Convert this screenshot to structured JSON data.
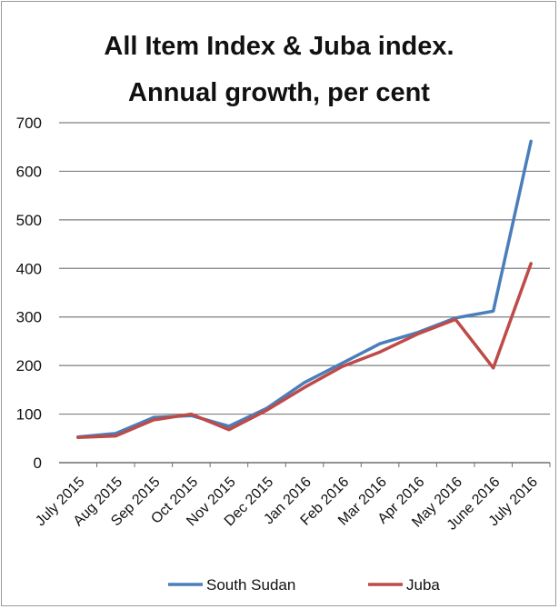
{
  "chart_data": {
    "type": "line",
    "title": [
      "All Item Index & Juba  index.",
      "Annual growth, per cent"
    ],
    "xlabel": "",
    "ylabel": "",
    "ylim": [
      0,
      700
    ],
    "yticks": [
      "0",
      "100",
      "200",
      "300",
      "400",
      "500",
      "600",
      "700"
    ],
    "grid": true,
    "legend": "bottom",
    "categories": [
      "July 2015",
      "Aug 2015",
      "Sep 2015",
      "Oct 2015",
      "Nov 2015",
      "Dec 2015",
      "Jan 2016",
      "Feb 2016",
      "Mar 2016",
      "Apr 2016",
      "May 2016",
      "June 2016",
      "July 2016"
    ],
    "series": [
      {
        "name": "South Sudan",
        "color": "#4a7ebb",
        "values": [
          53,
          60,
          93,
          97,
          75,
          112,
          165,
          205,
          245,
          268,
          298,
          312,
          662
        ]
      },
      {
        "name": "Juba",
        "color": "#be4b48",
        "values": [
          52,
          55,
          88,
          100,
          68,
          108,
          155,
          198,
          228,
          265,
          295,
          195,
          410
        ]
      }
    ]
  }
}
